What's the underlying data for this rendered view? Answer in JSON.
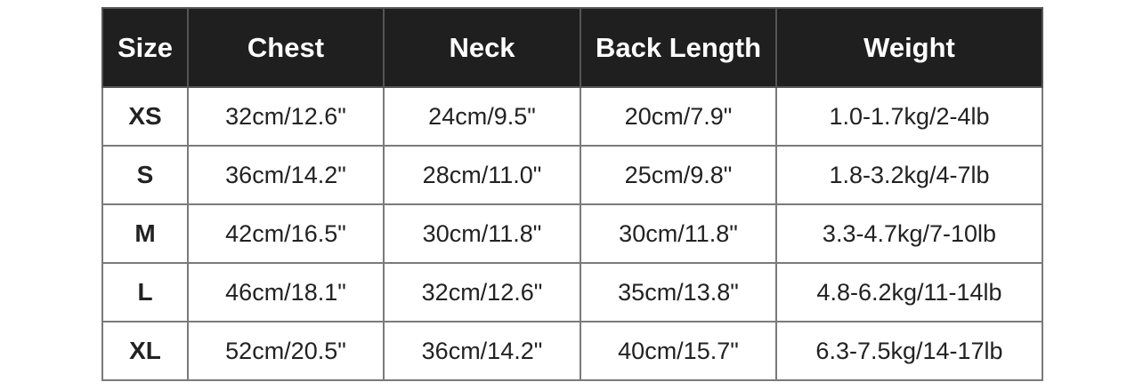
{
  "table": {
    "headers": [
      "Size",
      "Chest",
      "Neck",
      "Back Length",
      "Weight"
    ],
    "rows": [
      [
        "XS",
        "32cm/12.6\"",
        "24cm/9.5\"",
        "20cm/7.9\"",
        "1.0-1.7kg/2-4lb"
      ],
      [
        "S",
        "36cm/14.2\"",
        "28cm/11.0\"",
        "25cm/9.8\"",
        "1.8-3.2kg/4-7lb"
      ],
      [
        "M",
        "42cm/16.5\"",
        "30cm/11.8\"",
        "30cm/11.8\"",
        "3.3-4.7kg/7-10lb"
      ],
      [
        "L",
        "46cm/18.1\"",
        "32cm/12.6\"",
        "35cm/13.8\"",
        "4.8-6.2kg/11-14lb"
      ],
      [
        "XL",
        "52cm/20.5\"",
        "36cm/14.2\"",
        "40cm/15.7\"",
        "6.3-7.5kg/14-17lb"
      ]
    ]
  },
  "colors": {
    "header_bg": "#1f1f1f",
    "header_text": "#ffffff",
    "cell_text": "#222222"
  }
}
